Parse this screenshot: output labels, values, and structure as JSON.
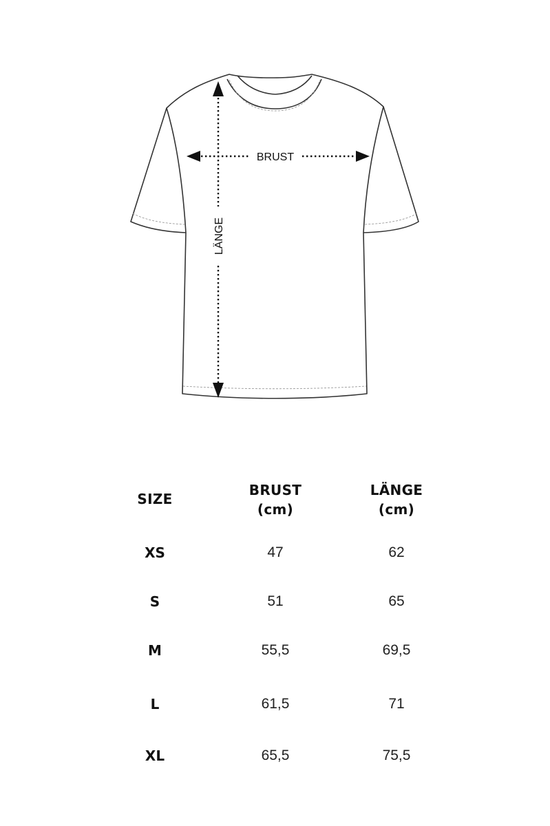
{
  "diagram": {
    "chest_label": "BRUST",
    "length_label": "LÄNGE"
  },
  "table": {
    "headers": {
      "size": "SIZE",
      "chest_line1": "BRUST",
      "chest_line2": "(cm)",
      "length_line1": "LÄNGE",
      "length_line2": "(cm)"
    },
    "rows": [
      {
        "size": "XS",
        "chest": "47",
        "length": "62"
      },
      {
        "size": "S",
        "chest": "51",
        "length": "65"
      },
      {
        "size": "M",
        "chest": "55,5",
        "length": "69,5"
      },
      {
        "size": "L",
        "chest": "61,5",
        "length": "71"
      },
      {
        "size": "XL",
        "chest": "65,5",
        "length": "75,5"
      }
    ]
  }
}
